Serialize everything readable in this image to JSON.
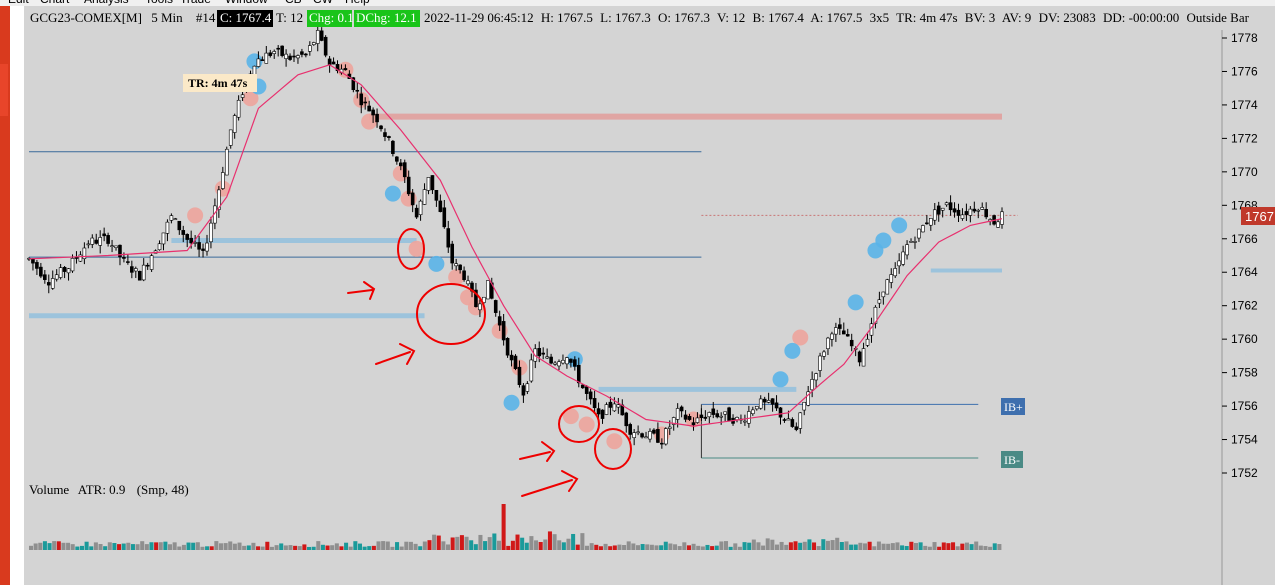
{
  "menu": {
    "items": [
      "Edit",
      "Chart",
      "Analysis",
      "Tools",
      "Trade",
      "Window",
      "CB",
      "CW",
      "Help"
    ]
  },
  "header": {
    "symbol": "GCG23-COMEX[M]",
    "interval": "5 Min",
    "bar_number": "#14",
    "close": "C: 1767.4",
    "ticks": "T: 12",
    "change": "Chg: 0.1",
    "day_change": "DChg: 12.1",
    "datetime": "2022-11-29 06:45:12",
    "high": "H: 1767.5",
    "low": "L: 1767.3",
    "open": "O: 1767.3",
    "volume": "V: 12",
    "bid": "B: 1767.4",
    "ask": "A: 1767.5",
    "bar_size": "3x5",
    "time_remaining": "TR: 4m 47s",
    "bid_volume": "BV: 3",
    "ask_volume": "AV: 9",
    "day_volume": "DV: 23083",
    "drawdown": "DD: -00:00:00",
    "bar_type": "Outside Bar"
  },
  "tr_label": "TR: 4m 47s",
  "price_tag": "1767",
  "ib_high_label": "IB+",
  "ib_low_label": "IB-",
  "volume_panel": {
    "title": "Volume",
    "atr": "ATR: 0.9",
    "smoothing": "(Smp, 48)"
  },
  "colors": {
    "background": "#d4d4d4",
    "candle": "#000000",
    "moving_average": "#e8306e",
    "price_tag": "#c0392b",
    "ib_high": "#3e6fae",
    "ib_low": "#4a8a85",
    "volume_up": "#1a9a9a",
    "volume_down": "#d01818",
    "volume_neutral": "#8f8f8f",
    "annotation": "#ee0000"
  },
  "chart_data": {
    "type": "candlestick",
    "y_axis_ticks": [
      1778,
      1776,
      1774,
      1772,
      1770,
      1768,
      1766,
      1764,
      1762,
      1760,
      1758,
      1756,
      1754,
      1752
    ],
    "ylim": [
      1751.5,
      1779
    ],
    "last_price": 1767.4,
    "price_path": [
      [
        0,
        1764.8
      ],
      [
        5,
        1763.5
      ],
      [
        10,
        1764.3
      ],
      [
        15,
        1765.8
      ],
      [
        20,
        1766.0
      ],
      [
        24,
        1764.6
      ],
      [
        28,
        1763.8
      ],
      [
        32,
        1765.5
      ],
      [
        36,
        1767.3
      ],
      [
        40,
        1766.0
      ],
      [
        44,
        1765.0
      ],
      [
        48,
        1769.0
      ],
      [
        51,
        1772.5
      ],
      [
        54,
        1774.8
      ],
      [
        57,
        1776.6
      ],
      [
        62,
        1777.2
      ],
      [
        66,
        1776.8
      ],
      [
        70,
        1777.0
      ],
      [
        73,
        1778.2
      ],
      [
        76,
        1776.5
      ],
      [
        80,
        1776.0
      ],
      [
        84,
        1774.3
      ],
      [
        88,
        1773.2
      ],
      [
        92,
        1771.3
      ],
      [
        95,
        1769.6
      ],
      [
        98,
        1767.3
      ],
      [
        101,
        1769.8
      ],
      [
        104,
        1767.5
      ],
      [
        107,
        1764.6
      ],
      [
        110,
        1763.8
      ],
      [
        113,
        1762.0
      ],
      [
        116,
        1763.2
      ],
      [
        119,
        1760.8
      ],
      [
        122,
        1758.6
      ],
      [
        125,
        1756.8
      ],
      [
        128,
        1759.3
      ],
      [
        132,
        1758.6
      ],
      [
        136,
        1759.1
      ],
      [
        140,
        1757.1
      ],
      [
        144,
        1755.3
      ],
      [
        148,
        1756.3
      ],
      [
        152,
        1754.6
      ],
      [
        156,
        1754.3
      ],
      [
        160,
        1754.0
      ],
      [
        164,
        1755.6
      ],
      [
        168,
        1755.0
      ],
      [
        172,
        1755.6
      ],
      [
        176,
        1755.4
      ],
      [
        180,
        1755.1
      ],
      [
        184,
        1756.2
      ],
      [
        188,
        1756.0
      ],
      [
        192,
        1755.0
      ],
      [
        194,
        1754.5
      ],
      [
        197,
        1757.0
      ],
      [
        200,
        1758.8
      ],
      [
        203,
        1760.6
      ],
      [
        206,
        1760.3
      ],
      [
        210,
        1758.8
      ],
      [
        213,
        1761.0
      ],
      [
        216,
        1763.1
      ],
      [
        219,
        1764.0
      ],
      [
        222,
        1765.6
      ],
      [
        225,
        1766.4
      ],
      [
        228,
        1767.4
      ],
      [
        232,
        1768.0
      ],
      [
        236,
        1767.5
      ],
      [
        240,
        1768.0
      ],
      [
        244,
        1767.0
      ],
      [
        246,
        1767.4
      ]
    ],
    "moving_average_path": [
      [
        0,
        1764.8
      ],
      [
        20,
        1765.0
      ],
      [
        40,
        1765.3
      ],
      [
        50,
        1768.5
      ],
      [
        58,
        1773.8
      ],
      [
        68,
        1775.8
      ],
      [
        76,
        1776.4
      ],
      [
        84,
        1775.2
      ],
      [
        94,
        1772.5
      ],
      [
        104,
        1769.5
      ],
      [
        112,
        1765.5
      ],
      [
        120,
        1762.0
      ],
      [
        128,
        1759.0
      ],
      [
        136,
        1757.8
      ],
      [
        146,
        1756.6
      ],
      [
        156,
        1755.2
      ],
      [
        168,
        1754.8
      ],
      [
        180,
        1755.2
      ],
      [
        192,
        1755.6
      ],
      [
        200,
        1757.3
      ],
      [
        206,
        1758.5
      ],
      [
        214,
        1761.0
      ],
      [
        222,
        1763.8
      ],
      [
        230,
        1765.8
      ],
      [
        238,
        1766.8
      ],
      [
        246,
        1767.2
      ]
    ],
    "horizontal_levels": [
      {
        "price": 1773.3,
        "from": 86,
        "to": 246,
        "color": "#e0a5a3",
        "width": 6
      },
      {
        "price": 1771.2,
        "from": 0,
        "to": 170,
        "color": "#3a6a9a",
        "width": 1
      },
      {
        "price": 1765.9,
        "from": 36,
        "to": 98,
        "color": "#9cc3dc",
        "width": 5
      },
      {
        "price": 1764.9,
        "from": 0,
        "to": 170,
        "color": "#3a6a9a",
        "width": 1
      },
      {
        "price": 1761.4,
        "from": 0,
        "to": 100,
        "color": "#9cc3dc",
        "width": 5
      },
      {
        "price": 1757.0,
        "from": 144,
        "to": 194,
        "color": "#9cc3dc",
        "width": 5
      },
      {
        "price": 1764.1,
        "from": 228,
        "to": 246,
        "color": "#9cc3dc",
        "width": 4
      },
      {
        "price": 1767.4,
        "from": 170,
        "to": 250,
        "color": "#c87575",
        "width": 1,
        "dashed": true
      }
    ],
    "ib_high": {
      "price": 1756.1,
      "from": 170,
      "to": 240
    },
    "ib_low": {
      "price": 1752.9,
      "from": 170,
      "to": 240
    },
    "markers_blue": [
      [
        58,
        1775.1
      ],
      [
        57,
        1776.6
      ],
      [
        92,
        1768.7
      ],
      [
        103,
        1764.5
      ],
      [
        122,
        1756.2
      ],
      [
        138,
        1758.8
      ],
      [
        190,
        1757.6
      ],
      [
        193,
        1759.3
      ],
      [
        209,
        1762.2
      ],
      [
        214,
        1765.3
      ],
      [
        216,
        1765.9
      ],
      [
        220,
        1766.8
      ]
    ],
    "markers_red": [
      [
        56,
        1774.4
      ],
      [
        49,
        1769.0
      ],
      [
        42,
        1767.4
      ],
      [
        80,
        1776.1
      ],
      [
        84,
        1774.3
      ],
      [
        86,
        1773.0
      ],
      [
        94,
        1769.9
      ],
      [
        96,
        1768.4
      ],
      [
        108,
        1763.7
      ],
      [
        111,
        1762.5
      ],
      [
        113,
        1761.9
      ],
      [
        119,
        1760.5
      ],
      [
        124,
        1758.3
      ],
      [
        137,
        1755.4
      ],
      [
        141,
        1754.9
      ],
      [
        148,
        1753.9
      ],
      [
        160,
        1754.3
      ],
      [
        168,
        1755.2
      ],
      [
        195,
        1760.1
      ],
      [
        98,
        1765.4
      ]
    ],
    "volume_panel_type": "bar",
    "volume_bar_count": 210
  }
}
